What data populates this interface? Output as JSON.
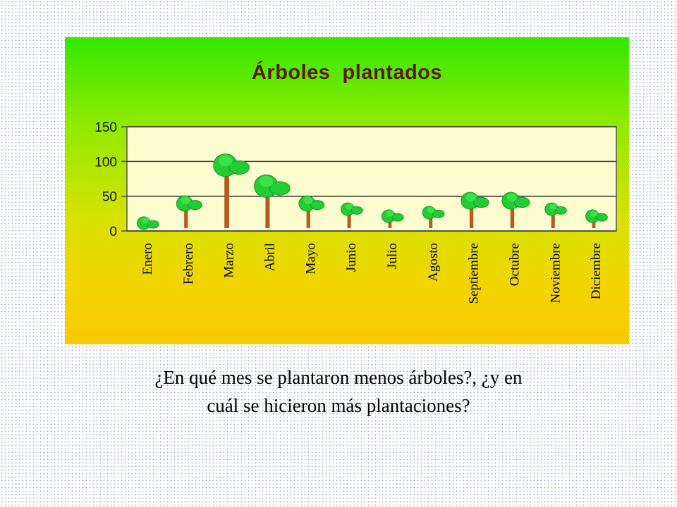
{
  "question": {
    "line1": "¿En qué mes se plantaron menos árboles?, ¿y en",
    "line2": "cuál se hicieron más plantaciones?"
  },
  "colors": {
    "plot_background": "#fdfccf",
    "axis": "#4a4a4a",
    "tree_foliage": "#22cc33",
    "tree_trunk": "#b85a20",
    "title": "#5a1a00"
  },
  "icons": {
    "data_mark": "tree-icon"
  },
  "chart_data": {
    "type": "bar",
    "title": "Árboles  plantados",
    "xlabel": "",
    "ylabel": "",
    "ylim": [
      0,
      150
    ],
    "yticks": [
      "0",
      "50",
      "100",
      "150"
    ],
    "grid": true,
    "categories": [
      "Enero",
      "Febrero",
      "Marzo",
      "Abril",
      "Mayo",
      "Junio",
      "Julio",
      "Agosto",
      "Septiembre",
      "Octubre",
      "Noviembre",
      "Diciembre"
    ],
    "values": [
      20,
      50,
      110,
      80,
      50,
      40,
      30,
      35,
      55,
      55,
      40,
      30
    ]
  }
}
